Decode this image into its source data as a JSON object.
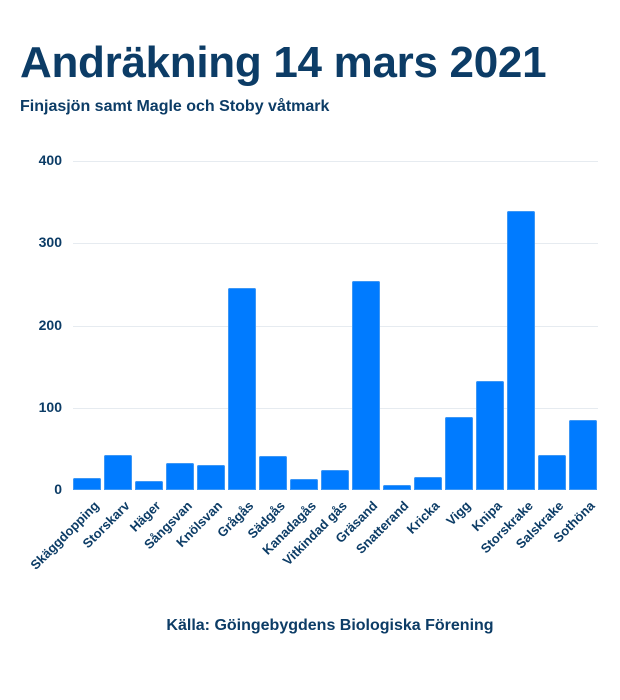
{
  "header": {
    "title": "Andräkning 14 mars 2021",
    "subtitle": "Finjasjön samt Magle och Stoby våtmark"
  },
  "footer": {
    "source": "Källa: Göingebygdens Biologiska Förening"
  },
  "colors": {
    "bar": "#007bff",
    "text": "#0c3c66",
    "grid": "#e6ebf0"
  },
  "chart_data": {
    "type": "bar",
    "title": "Andräkning 14 mars 2021",
    "subtitle": "Finjasjön samt Magle och Stoby våtmark",
    "xlabel": "",
    "ylabel": "",
    "ylim": [
      0,
      400
    ],
    "yticks": [
      0,
      100,
      200,
      300,
      400
    ],
    "grid": true,
    "legend": null,
    "categories": [
      "Skäggdopping",
      "Storskarv",
      "Häger",
      "Sångsvan",
      "Knölsvan",
      "Grågås",
      "Sädgås",
      "Kanadagås",
      "Vitkindad gås",
      "Gräsand",
      "Snatterand",
      "Kricka",
      "Vigg",
      "Knipa",
      "Storskrake",
      "Salskrake",
      "Sothöna"
    ],
    "values": [
      15,
      42,
      11,
      33,
      31,
      245,
      41,
      13,
      24,
      254,
      6,
      16,
      89,
      132,
      339,
      42,
      85
    ],
    "annotation": "Källa: Göingebygdens Biologiska Förening"
  }
}
